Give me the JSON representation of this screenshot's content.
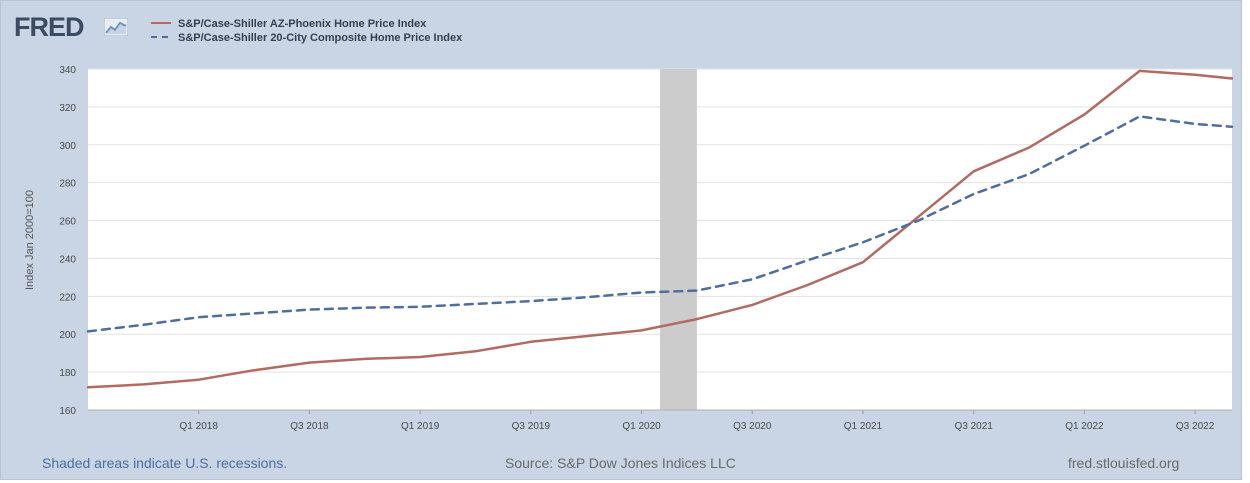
{
  "logo": {
    "text": "FRED",
    "icon": "fred-graph-icon"
  },
  "colors": {
    "series1": "#b36a63",
    "series2": "#4f6d9e",
    "recession": "#cccccc",
    "frame": "#c9d4e4",
    "footer_link": "#4b6da3"
  },
  "chart_data": {
    "type": "line",
    "ylabel": "Index Jan 2000=100",
    "ylim": [
      160,
      340
    ],
    "yticks": [
      160,
      180,
      200,
      220,
      240,
      260,
      280,
      300,
      320,
      340
    ],
    "xlim": [
      "2017-07",
      "2022-09"
    ],
    "xtick_labels": [
      "Q1 2018",
      "Q3 2018",
      "Q1 2019",
      "Q3 2019",
      "Q1 2020",
      "Q3 2020",
      "Q1 2021",
      "Q3 2021",
      "Q1 2022",
      "Q3 2022"
    ],
    "xtick_dates": [
      "2018-01",
      "2018-07",
      "2019-01",
      "2019-07",
      "2020-01",
      "2020-07",
      "2021-01",
      "2021-07",
      "2022-01",
      "2022-07"
    ],
    "recession": {
      "start": "2020-02",
      "end": "2020-04"
    },
    "grid": true,
    "legend_position": "top-left",
    "series": [
      {
        "name": "S&P/Case-Shiller AZ-Phoenix Home Price Index",
        "style": "solid",
        "x": [
          "2017-07",
          "2017-10",
          "2018-01",
          "2018-04",
          "2018-07",
          "2018-10",
          "2019-01",
          "2019-04",
          "2019-07",
          "2019-10",
          "2020-01",
          "2020-04",
          "2020-07",
          "2020-10",
          "2021-01",
          "2021-04",
          "2021-07",
          "2021-10",
          "2022-01",
          "2022-04",
          "2022-07",
          "2022-09"
        ],
        "y": [
          172,
          173.5,
          176,
          181,
          185,
          187,
          188,
          191,
          196,
          199,
          202,
          208,
          215.5,
          226,
          238,
          262,
          286,
          298.5,
          316,
          339,
          337,
          335
        ]
      },
      {
        "name": "S&P/Case-Shiller 20-City Composite Home Price Index",
        "style": "dashed",
        "x": [
          "2017-07",
          "2017-10",
          "2018-01",
          "2018-04",
          "2018-07",
          "2018-10",
          "2019-01",
          "2019-04",
          "2019-07",
          "2019-10",
          "2020-01",
          "2020-04",
          "2020-07",
          "2020-10",
          "2021-01",
          "2021-04",
          "2021-07",
          "2021-10",
          "2022-01",
          "2022-04",
          "2022-07",
          "2022-09"
        ],
        "y": [
          201.5,
          205,
          209,
          211,
          213,
          214,
          214.5,
          216,
          217.5,
          219.5,
          222,
          223,
          229,
          239,
          248.5,
          260,
          274,
          284.5,
          299.5,
          315,
          311,
          309.5
        ]
      }
    ]
  },
  "footer": {
    "recession_note": "Shaded areas indicate U.S. recessions.",
    "source": "Source: S&P Dow Jones Indices LLC",
    "site": "fred.stlouisfed.org"
  }
}
